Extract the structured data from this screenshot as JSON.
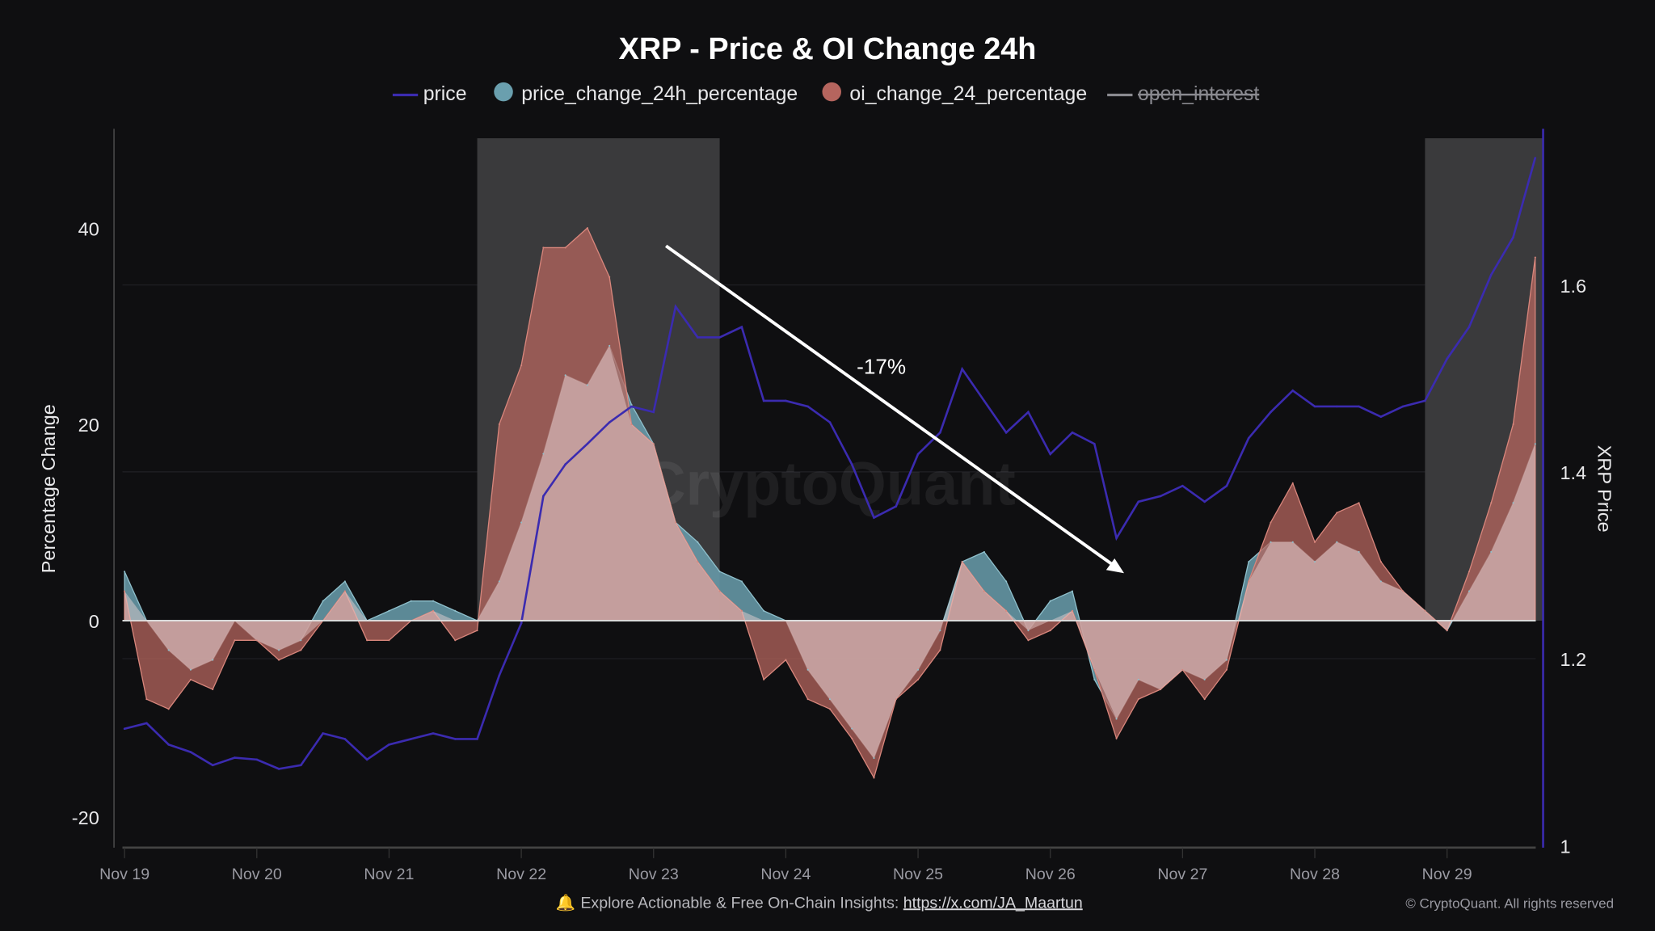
{
  "chart_data": {
    "type": "line+area",
    "title": "XRP - Price & OI Change 24h",
    "ylabel_left": "Percentage Change",
    "ylabel_right": "XRP Price",
    "ylim_left": [
      -23,
      50
    ],
    "ylim_right": [
      1,
      1.76
    ],
    "yticks_left": [
      "40",
      "20",
      "0",
      "-20"
    ],
    "yticks_right": [
      "1.6",
      "1.4",
      "1.2",
      "1"
    ],
    "xticks": [
      "Nov 19",
      "Nov 20",
      "Nov 21",
      "Nov 22",
      "Nov 23",
      "Nov 24",
      "Nov 25",
      "Nov 26",
      "Nov 27",
      "Nov 28",
      "Nov 29"
    ],
    "legend": [
      {
        "name": "price",
        "color": "#3b2bb0",
        "marker": "line"
      },
      {
        "name": "price_change_24h_percentage",
        "color": "#6a9fae",
        "marker": "circle"
      },
      {
        "name": "oi_change_24_percentage",
        "color": "#b5655e",
        "marker": "circle"
      },
      {
        "name": "open_interest",
        "color": "#8a8a90",
        "marker": "line",
        "hidden": true
      }
    ],
    "legend_position": "top",
    "x_step_hours": 4,
    "x_start": "Nov 19 00:00",
    "series": [
      {
        "name": "price",
        "axis": "right",
        "values": [
          1.125,
          1.131,
          1.108,
          1.1,
          1.086,
          1.094,
          1.092,
          1.082,
          1.086,
          1.12,
          1.114,
          1.092,
          1.108,
          1.114,
          1.12,
          1.114,
          1.114,
          1.182,
          1.238,
          1.374,
          1.408,
          1.43,
          1.453,
          1.47,
          1.464,
          1.577,
          1.544,
          1.544,
          1.555,
          1.476,
          1.476,
          1.47,
          1.453,
          1.408,
          1.351,
          1.363,
          1.419,
          1.442,
          1.51,
          1.476,
          1.442,
          1.464,
          1.419,
          1.442,
          1.43,
          1.329,
          1.368,
          1.374,
          1.385,
          1.368,
          1.385,
          1.436,
          1.464,
          1.487,
          1.47,
          1.47,
          1.47,
          1.459,
          1.47,
          1.476,
          1.521,
          1.555,
          1.611,
          1.651,
          1.736
        ]
      },
      {
        "name": "price_change_24h_percentage",
        "axis": "left",
        "values": [
          5,
          0,
          -3,
          -5,
          -4,
          0,
          -2,
          -3,
          -2,
          2,
          4,
          0,
          1,
          2,
          2,
          1,
          0,
          4,
          10,
          17,
          25,
          24,
          28,
          22,
          18,
          10,
          8,
          5,
          4,
          1,
          0,
          -5,
          -8,
          -11,
          -14,
          -8,
          -5,
          -1,
          6,
          7,
          4,
          -1,
          2,
          3,
          -6,
          -10,
          -6,
          -7,
          -5,
          -6,
          -4,
          6,
          8,
          8,
          6,
          8,
          7,
          4,
          3,
          1,
          -1,
          3,
          7,
          12,
          18
        ]
      },
      {
        "name": "oi_change_24_percentage",
        "axis": "left",
        "values": [
          3,
          -8,
          -9,
          -6,
          -7,
          -2,
          -2,
          -4,
          -3,
          0,
          3,
          -2,
          -2,
          0,
          1,
          -2,
          -1,
          20,
          26,
          38,
          38,
          40,
          35,
          20,
          18,
          10,
          6,
          3,
          1,
          -6,
          -4,
          -8,
          -9,
          -12,
          -16,
          -8,
          -6,
          -3,
          6,
          3,
          1,
          -2,
          -1,
          1,
          -5,
          -12,
          -8,
          -7,
          -5,
          -8,
          -5,
          4,
          10,
          14,
          8,
          11,
          12,
          6,
          3,
          1,
          -1,
          5,
          12,
          20,
          37
        ]
      }
    ],
    "highlight_regions": [
      {
        "from": "Nov 21 16:00",
        "to": "Nov 23 12:00"
      },
      {
        "from": "Nov 28 20:00",
        "to": "Nov 29 18:00"
      }
    ],
    "annotation": {
      "text": "-17%"
    },
    "watermark": "CryptoQuant"
  },
  "footer": {
    "bell_icon": "bell-icon",
    "text": "Explore Actionable & Free On-Chain Insights: ",
    "link": "https://x.com/JA_Maartun",
    "copyright": "© CryptoQuant. All rights reserved"
  },
  "colors": {
    "background": "#0f0f11",
    "price": "#3b2bb0",
    "price_change": "#6a9fae",
    "oi_change": "#b5655e"
  }
}
